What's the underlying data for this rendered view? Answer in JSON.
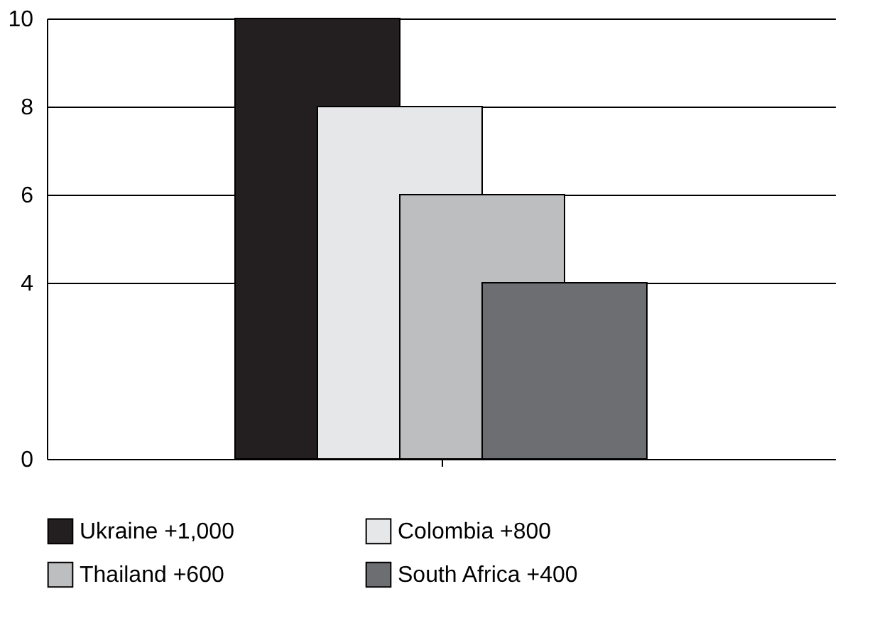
{
  "chart_data": {
    "type": "bar",
    "categories": [
      null
    ],
    "series": [
      {
        "name": "Ukraine +1,000",
        "color": "#231f20",
        "values": [
          10
        ]
      },
      {
        "name": "Colombia +800",
        "color": "#e6e7e8",
        "values": [
          8
        ]
      },
      {
        "name": "Thailand +600",
        "color": "#bcbec0",
        "values": [
          6
        ]
      },
      {
        "name": "South Africa +400",
        "color": "#6d6e71",
        "values": [
          4
        ]
      }
    ],
    "ylim": [
      0,
      10
    ],
    "yticks": [
      0,
      4,
      6,
      8,
      10
    ],
    "grid": "y",
    "legend": "bottom"
  }
}
